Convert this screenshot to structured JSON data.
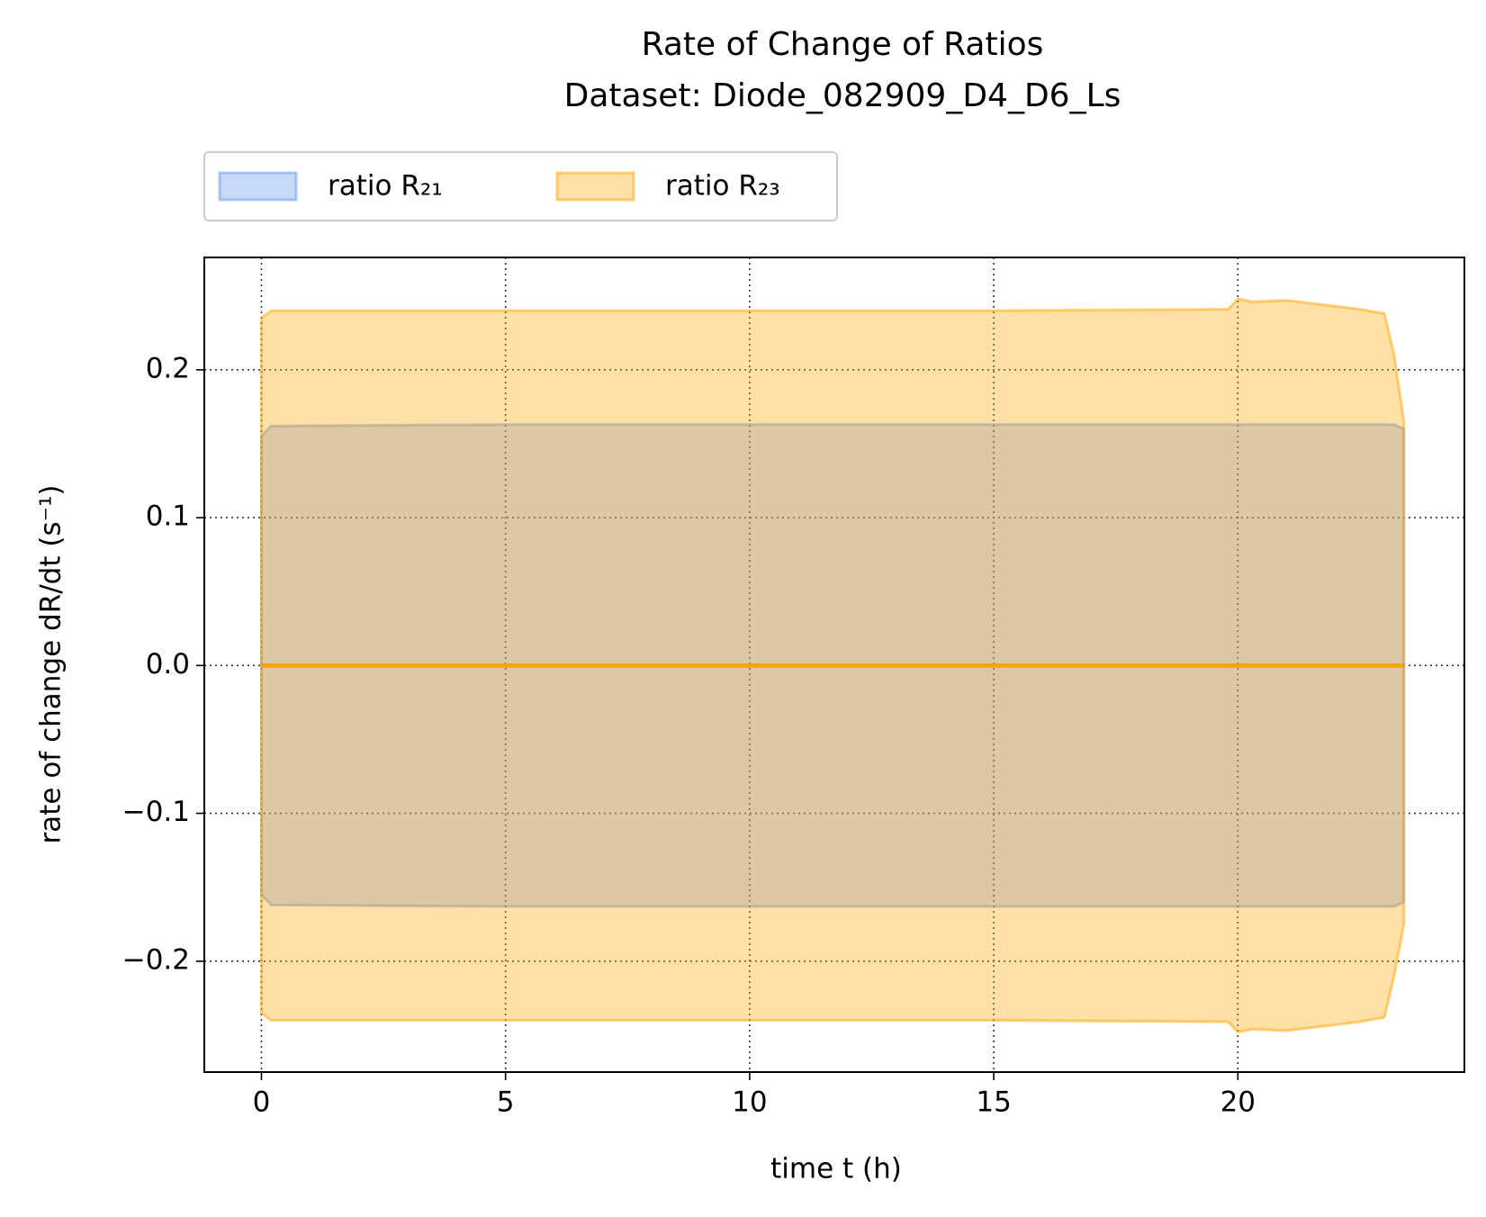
{
  "chart_data": {
    "type": "band",
    "title": "Rate of Change of Ratios",
    "subtitle": "Dataset: Diode_082909_D4_D6_Ls",
    "x_label": "time t (h)",
    "y_label": "rate of change dR/dt (s⁻¹)",
    "x": [
      0,
      0.2,
      5,
      10,
      15,
      19.8,
      20,
      20.3,
      21,
      22,
      22.5,
      23,
      23.2,
      23.4
    ],
    "series": [
      {
        "name": "ratio R₂₁",
        "color": "#6495ed",
        "line_color": "#4169e1",
        "values": [
          0,
          0,
          0,
          0,
          0,
          0,
          0,
          0,
          0,
          0,
          0,
          0,
          0,
          0
        ],
        "upper": [
          0.155,
          0.162,
          0.163,
          0.163,
          0.163,
          0.163,
          0.163,
          0.163,
          0.163,
          0.163,
          0.163,
          0.163,
          0.163,
          0.16
        ],
        "lower": [
          -0.155,
          -0.162,
          -0.163,
          -0.163,
          -0.163,
          -0.163,
          -0.163,
          -0.163,
          -0.163,
          -0.163,
          -0.163,
          -0.163,
          -0.163,
          -0.16
        ]
      },
      {
        "name": "ratio R₂₃",
        "color": "#ffa500",
        "line_color": "#ffa500",
        "values": [
          0,
          0,
          0,
          0,
          0,
          0,
          0,
          0,
          0,
          0,
          0,
          0,
          0,
          0
        ],
        "upper": [
          0.235,
          0.24,
          0.24,
          0.24,
          0.24,
          0.241,
          0.248,
          0.246,
          0.247,
          0.243,
          0.241,
          0.238,
          0.21,
          0.165
        ],
        "lower": [
          -0.235,
          -0.24,
          -0.24,
          -0.24,
          -0.24,
          -0.241,
          -0.248,
          -0.246,
          -0.247,
          -0.243,
          -0.241,
          -0.238,
          -0.21,
          -0.175
        ]
      }
    ],
    "xlim": [
      -1.17,
      24.64
    ],
    "ylim": [
      -0.275,
      0.276
    ],
    "xticks": [
      0,
      5,
      10,
      15,
      20
    ],
    "yticks": [
      {
        "value": -0.2,
        "label": "−0.2"
      },
      {
        "value": -0.1,
        "label": "−0.1"
      },
      {
        "value": 0,
        "label": "0.0"
      },
      0.1,
      0.2
    ],
    "grid": true,
    "legend": "above"
  }
}
